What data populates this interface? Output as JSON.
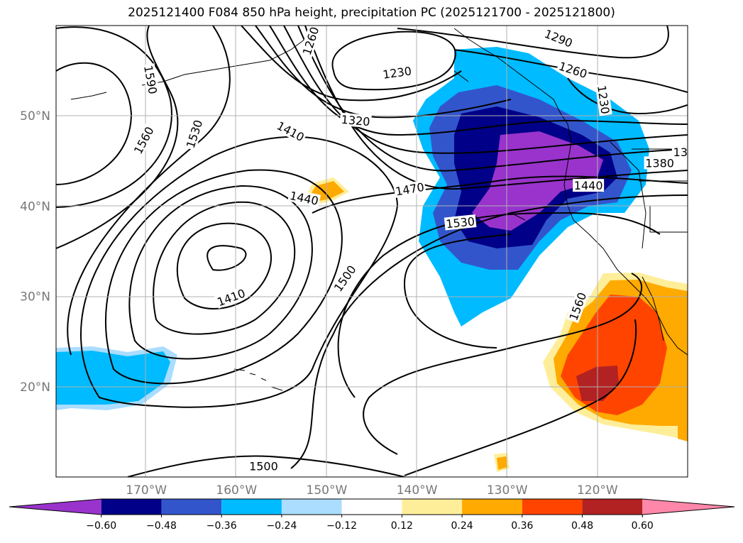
{
  "title": "2025121400 F084 850 hPa height, precipitation PC (2025121700 - 2025121800)",
  "map": {
    "lon_range": [
      -180,
      -110
    ],
    "lat_range": [
      10,
      60
    ],
    "lon_ticks": [
      {
        "lon": -170,
        "label": "170°W"
      },
      {
        "lon": -160,
        "label": "160°W"
      },
      {
        "lon": -150,
        "label": "150°W"
      },
      {
        "lon": -140,
        "label": "140°W"
      },
      {
        "lon": -130,
        "label": "130°W"
      },
      {
        "lon": -120,
        "label": "120°W"
      }
    ],
    "lat_ticks": [
      {
        "lat": 20,
        "label": "20°N"
      },
      {
        "lat": 30,
        "label": "30°N"
      },
      {
        "lat": 40,
        "label": "40°N"
      },
      {
        "lat": 50,
        "label": "50°N"
      }
    ],
    "grid": true
  },
  "contour_labels": [
    {
      "text": "1590",
      "lon": -169.5,
      "lat": 54.0,
      "rot": 80
    },
    {
      "text": "1560",
      "lon": -170.3,
      "lat": 47.3,
      "rot": -62
    },
    {
      "text": "1530",
      "lon": -164.7,
      "lat": 48.0,
      "rot": -72
    },
    {
      "text": "1260",
      "lon": -151.8,
      "lat": 58.3,
      "rot": -72
    },
    {
      "text": "1230",
      "lon": -142.2,
      "lat": 54.8,
      "rot": -8
    },
    {
      "text": "1320",
      "lon": -146.8,
      "lat": 49.5,
      "rot": 5
    },
    {
      "text": "1410",
      "lon": -154.0,
      "lat": 48.3,
      "rot": 28
    },
    {
      "text": "1440",
      "lon": -152.5,
      "lat": 40.9,
      "rot": 12
    },
    {
      "text": "1470",
      "lon": -140.8,
      "lat": 41.9,
      "rot": -10
    },
    {
      "text": "1530",
      "lon": -135.2,
      "lat": 38.2,
      "rot": -6
    },
    {
      "text": "1410",
      "lon": -160.6,
      "lat": 29.9,
      "rot": -20
    },
    {
      "text": "1500",
      "lon": -148.0,
      "lat": 32.0,
      "rot": -55
    },
    {
      "text": "1290",
      "lon": -124.3,
      "lat": 58.6,
      "rot": 22
    },
    {
      "text": "1260",
      "lon": -122.7,
      "lat": 55.1,
      "rot": 18
    },
    {
      "text": "1230",
      "lon": -119.3,
      "lat": 51.8,
      "rot": 82
    },
    {
      "text": "1380",
      "lon": -113.1,
      "lat": 44.8,
      "rot": 0
    },
    {
      "text": "13",
      "lon": -110.8,
      "lat": 46.0,
      "rot": 0
    },
    {
      "text": "1440",
      "lon": -121.0,
      "lat": 42.3,
      "rot": 0
    },
    {
      "text": "1560",
      "lon": -122.2,
      "lat": 28.9,
      "rot": -70
    },
    {
      "text": "1500",
      "lon": -157.0,
      "lat": 11.2,
      "rot": 0
    }
  ],
  "colorbar": {
    "colors": [
      "#9933cc",
      "#000088",
      "#3355cc",
      "#00bbff",
      "#aaddff",
      "#ffffff",
      "#ffee99",
      "#ffaa00",
      "#ff4400",
      "#b22222",
      "#ff88aa"
    ],
    "labels": [
      "−0.60",
      "−0.48",
      "−0.36",
      "−0.24",
      "−0.12",
      "0.12",
      "0.24",
      "0.36",
      "0.48",
      "0.60"
    ]
  }
}
